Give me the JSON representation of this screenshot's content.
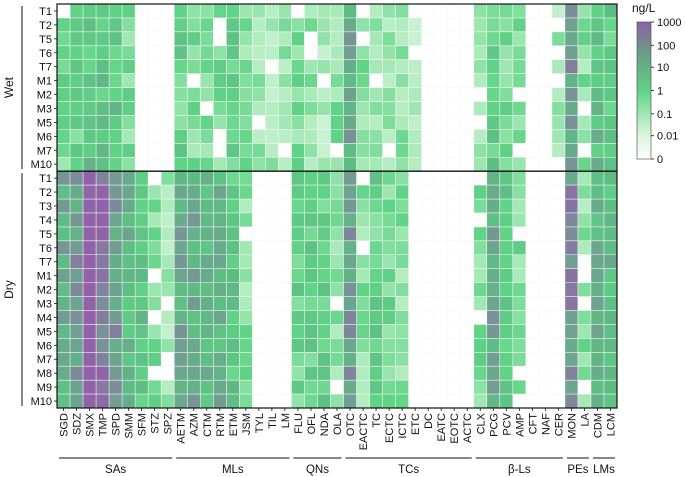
{
  "chart_data": {
    "type": "heatmap",
    "colorbar": {
      "title": "ng/L",
      "tick_labels": [
        "1000",
        "100",
        "10",
        "1",
        "0.1",
        "0.01",
        "0"
      ],
      "log_values": [
        3,
        2,
        1,
        0,
        -1,
        -2
      ],
      "scale": "log10, 0 = not detected"
    },
    "columns": [
      "SGD",
      "SDZ",
      "SMX",
      "TMP",
      "SPD",
      "SMM",
      "SFM",
      "STZ",
      "SPZ",
      "AETM",
      "AZM",
      "CTM",
      "RTM",
      "ETM",
      "JSM",
      "TYL",
      "TIL",
      "LM",
      "FLU",
      "OFL",
      "NDA",
      "OLA",
      "OTC",
      "EACTC",
      "TC",
      "ECTC",
      "ICTC",
      "ETC",
      "DC",
      "EATC",
      "EOTC",
      "ACTC",
      "CLX",
      "PCG",
      "PCV",
      "AMP",
      "CFT",
      "NAF",
      "CER",
      "MON",
      "LA",
      "CDM",
      "LCM"
    ],
    "column_groups": [
      {
        "label": "SAs",
        "count": 9
      },
      {
        "label": "MLs",
        "count": 9
      },
      {
        "label": "QNs",
        "count": 4
      },
      {
        "label": "TCs",
        "count": 10
      },
      {
        "label": "β-Ls",
        "count": 7
      },
      {
        "label": "PEs",
        "count": 2
      },
      {
        "label": "LMs",
        "count": 2
      }
    ],
    "row_groups": [
      {
        "label": "Wet",
        "rows": [
          "T1",
          "T2",
          "T5",
          "T6",
          "T7",
          "M1",
          "M2",
          "M3",
          "M5",
          "M6",
          "M7",
          "M10"
        ]
      },
      {
        "label": "Dry",
        "rows": [
          "T1",
          "T2",
          "T3",
          "T4",
          "T5",
          "T6",
          "T7",
          "M1",
          "M2",
          "M3",
          "M4",
          "M5",
          "M6",
          "M7",
          "M8",
          "M9",
          "M10"
        ]
      }
    ],
    "column_levels_wet": [
      0.6,
      0.8,
      1.0,
      1.0,
      1.0,
      0.6,
      0,
      0,
      0,
      0.8,
      0.6,
      0.6,
      0.6,
      0.8,
      0.5,
      0.4,
      0.3,
      0.4,
      0.6,
      0.4,
      0.2,
      0.5,
      1.4,
      0.5,
      0.4,
      0.4,
      0.4,
      0.2,
      0,
      0,
      0,
      0,
      0.5,
      0.9,
      0.7,
      0.5,
      0,
      0,
      0.3,
      1.6,
      0.5,
      1.1,
      0.9
    ],
    "column_levels_dry": [
      1.4,
      1.6,
      2.4,
      2.0,
      1.6,
      1.2,
      1.0,
      0.6,
      0.3,
      1.4,
      1.4,
      1.2,
      1.3,
      1.0,
      0.5,
      0,
      0,
      0,
      0.8,
      0.8,
      0.8,
      0.5,
      1.6,
      0.5,
      0.8,
      0.7,
      0.5,
      0,
      0,
      0,
      0,
      0,
      0.6,
      1.4,
      1.0,
      0.6,
      0,
      0,
      0,
      1.7,
      0.5,
      1.3,
      1.2
    ]
  }
}
